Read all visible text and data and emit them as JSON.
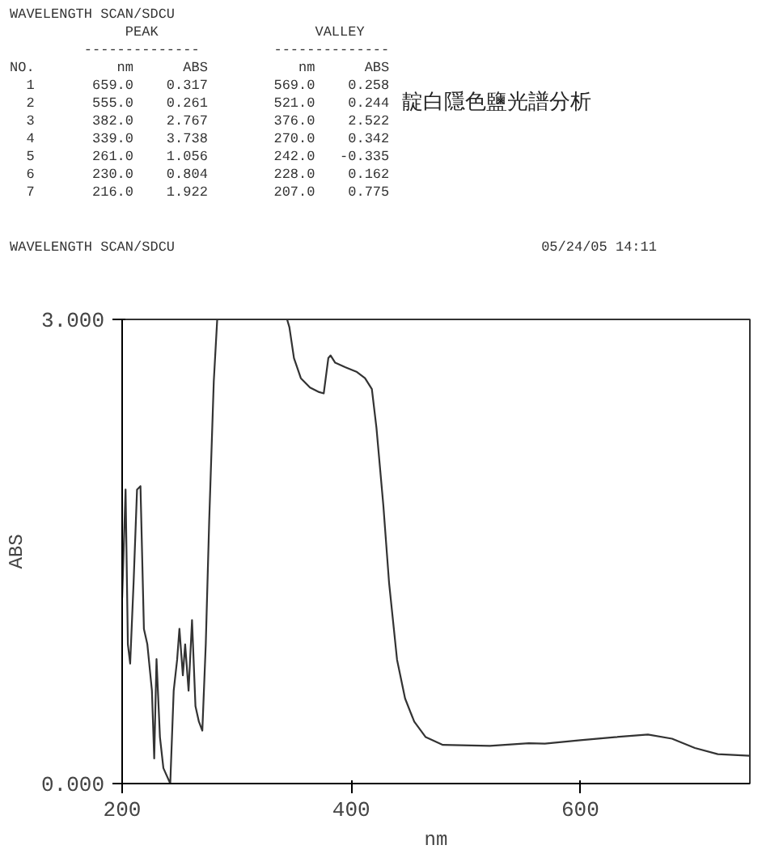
{
  "chart_data": {
    "type": "line",
    "title": "靛白隱色鹽光譜分析",
    "subtitle": "WAVELENGTH SCAN/SDCU",
    "annotations": [
      "WAVELENGTH SCAN/SDCU",
      "              PEAK                   VALLEY",
      "         --------------         --------------",
      "NO.          nm      ABS           nm      ABS",
      "  1       659.0    0.317        569.0    0.258",
      "  2       555.0    0.261        521.0    0.244",
      "  3       382.0    2.767        376.0    2.522",
      "  4       339.0    3.738        270.0    0.342",
      "  5       261.0    1.056        242.0   -0.335",
      "  6       230.0    0.804        228.0    0.162",
      "  7       216.0    1.922        207.0    0.775",
      "05/24/05 14:11"
    ],
    "xlabel": "nm",
    "ylabel": "ABS",
    "x": [
      200,
      203,
      205,
      207,
      210,
      213,
      216,
      219,
      222,
      226,
      228,
      230,
      233,
      236,
      242,
      245,
      248,
      250,
      253,
      255,
      258,
      261,
      264,
      267,
      270,
      273,
      276,
      280,
      283,
      300,
      344,
      346,
      350,
      356,
      364,
      372,
      376,
      380,
      382,
      386,
      395,
      405,
      412,
      418,
      422,
      428,
      433,
      440,
      447,
      455,
      465,
      480,
      521,
      555,
      569,
      600,
      630,
      659,
      680,
      700,
      720,
      748
    ],
    "series": [
      {
        "color": "#333333",
        "values": [
          1.2,
          1.9,
          0.9,
          0.775,
          1.3,
          1.9,
          1.922,
          1.0,
          0.9,
          0.6,
          0.162,
          0.804,
          0.3,
          0.1,
          0.0,
          0.6,
          0.8,
          1.0,
          0.7,
          0.9,
          0.6,
          1.056,
          0.5,
          0.4,
          0.342,
          0.9,
          1.7,
          2.6,
          3.0,
          null,
          3.0,
          2.95,
          2.75,
          2.62,
          2.56,
          2.53,
          2.522,
          2.75,
          2.767,
          2.72,
          2.69,
          2.66,
          2.62,
          2.55,
          2.3,
          1.8,
          1.3,
          0.8,
          0.55,
          0.4,
          0.3,
          0.25,
          0.244,
          0.261,
          0.258,
          0.28,
          0.3,
          0.317,
          0.29,
          0.23,
          0.19,
          0.18
        ]
      }
    ],
    "xlim": [
      200,
      748
    ],
    "ylim": [
      0,
      3
    ],
    "xticks": [
      200,
      400,
      600
    ],
    "yticks": [
      {
        "value": 0,
        "label": "0.000"
      },
      {
        "value": 3,
        "label": "3.000"
      }
    ],
    "grid": false,
    "marker": "none",
    "line_style": "solid"
  }
}
